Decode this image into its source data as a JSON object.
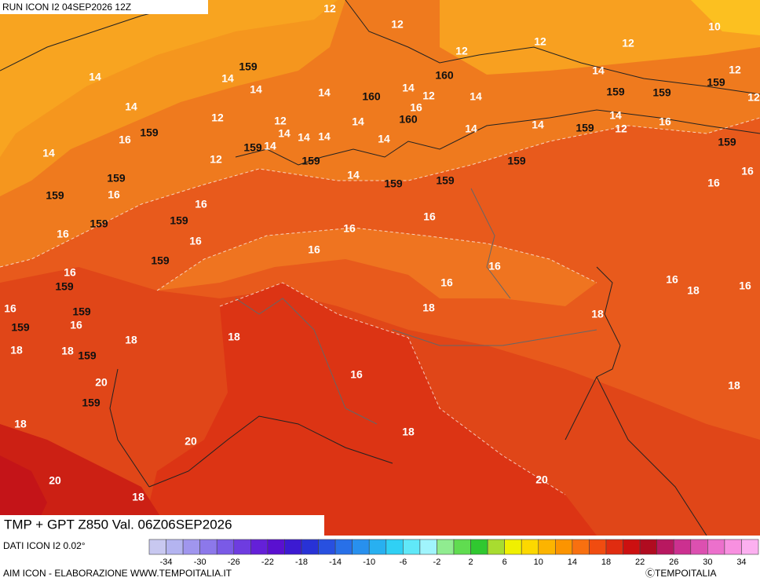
{
  "header": "RUN ICON I2 04SEP2026 12Z",
  "title": "TMP + GPT Z850 Val. 06Z06SEP2026",
  "source": "DATI ICON I2 0.02°",
  "footer": "AIM ICON - ELABORAZIONE WWW.TEMPOITALIA.IT",
  "copyright": "ⒸTEMPOITALIA",
  "isotherm_labels": [
    "12",
    "12",
    "10",
    "12",
    "12",
    "12",
    "14",
    "14",
    "12",
    "14",
    "14",
    "14",
    "14",
    "12",
    "14",
    "12",
    "14",
    "16",
    "12",
    "12",
    "14",
    "14",
    "14",
    "14",
    "12",
    "16",
    "14",
    "14",
    "16",
    "14",
    "14",
    "14",
    "14",
    "12",
    "16",
    "14",
    "16",
    "16",
    "16",
    "16",
    "16",
    "16",
    "16",
    "16",
    "16",
    "16",
    "16",
    "16",
    "18",
    "16",
    "16",
    "18",
    "18",
    "16",
    "18",
    "18",
    "18",
    "18",
    "16",
    "20",
    "18",
    "18",
    "18",
    "20",
    "20",
    "20",
    "18"
  ],
  "height_labels": [
    "159",
    "160",
    "160",
    "159",
    "159",
    "159",
    "160",
    "159",
    "159",
    "159",
    "159",
    "159",
    "159",
    "159",
    "159",
    "159",
    "159",
    "159",
    "159",
    "159",
    "159",
    "159",
    "159",
    "159",
    "159"
  ],
  "colorbar": {
    "colors": [
      "#c8c8f0",
      "#b4b4f0",
      "#a096ee",
      "#8c78ea",
      "#7a5ae6",
      "#6e3ce0",
      "#6420d8",
      "#5a10d0",
      "#3c1ad2",
      "#2832d6",
      "#2850e0",
      "#2870e8",
      "#2890ee",
      "#28b0f0",
      "#30d0f4",
      "#60e8f8",
      "#a0f4fc",
      "#90ec90",
      "#60dc50",
      "#30c830",
      "#a8dc30",
      "#f0f000",
      "#fcd800",
      "#fcb400",
      "#fc9400",
      "#f87010",
      "#f04c10",
      "#e02c10",
      "#cc1010",
      "#b00c20",
      "#b81860",
      "#cc3090",
      "#dc50b0",
      "#ec70cc",
      "#f890e0",
      "#fcb0f0"
    ],
    "ticks": [
      -34,
      -30,
      -26,
      -22,
      -18,
      -14,
      -10,
      -6,
      -2,
      2,
      6,
      10,
      14,
      18,
      22,
      26,
      30,
      34
    ]
  }
}
